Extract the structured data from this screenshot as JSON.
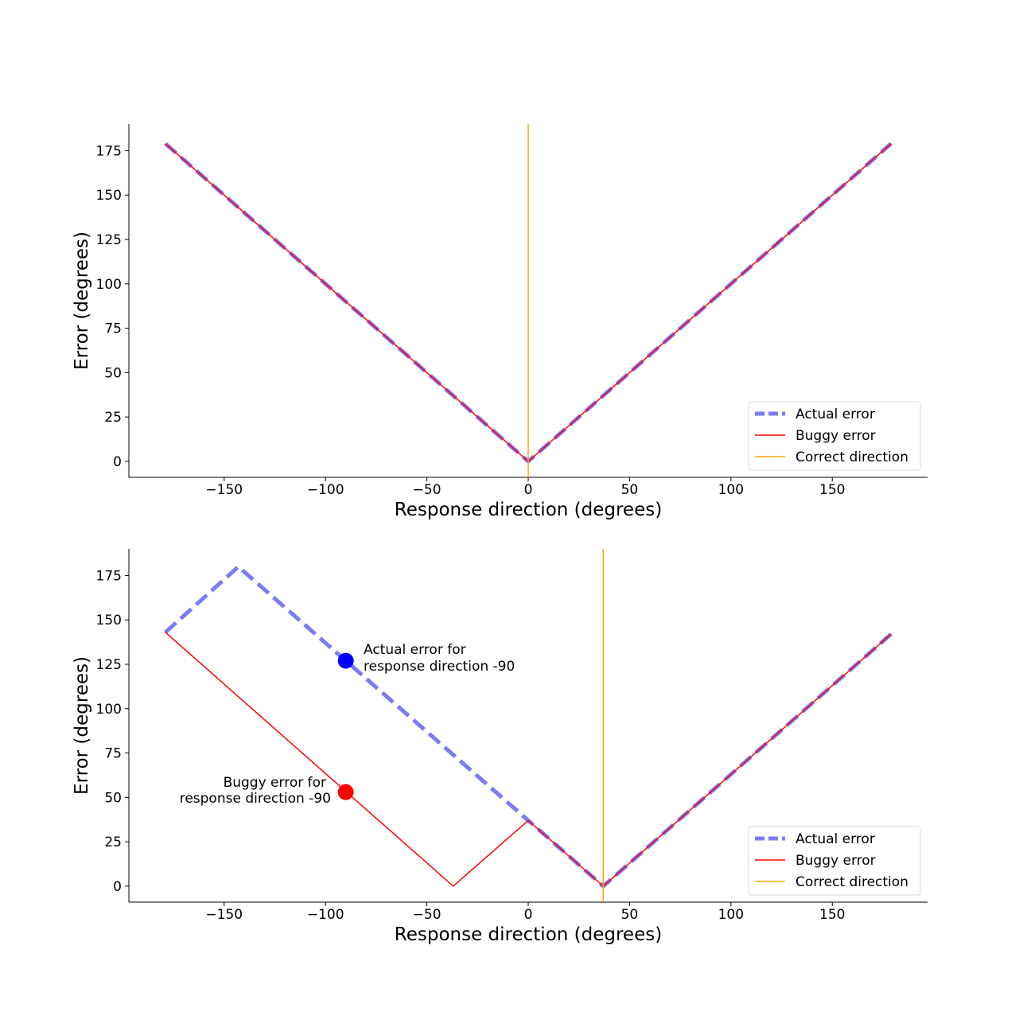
{
  "chart_data": [
    {
      "type": "line",
      "xlabel": "Response direction (degrees)",
      "ylabel": "Error (degrees)",
      "xlim": [
        -197,
        197
      ],
      "ylim": [
        -9,
        190
      ],
      "xticks": [
        -150,
        -100,
        -50,
        0,
        50,
        100,
        150
      ],
      "yticks": [
        0,
        25,
        50,
        75,
        100,
        125,
        150,
        175
      ],
      "legend_position": "lower-right",
      "series": [
        {
          "name": "Actual error",
          "style": "dashed",
          "color": "#7b7bf7",
          "x": [
            -179,
            0,
            179
          ],
          "y": [
            179,
            0,
            179
          ]
        },
        {
          "name": "Buggy error",
          "style": "solid",
          "color": "#ff0000",
          "x": [
            -179,
            0,
            179
          ],
          "y": [
            179,
            0,
            179
          ]
        }
      ],
      "vlines": [
        {
          "name": "Correct direction",
          "x": 0,
          "color": "#ffa500"
        }
      ],
      "points": [],
      "annotations": []
    },
    {
      "type": "line",
      "xlabel": "Response direction (degrees)",
      "ylabel": "Error (degrees)",
      "xlim": [
        -197,
        197
      ],
      "ylim": [
        -9,
        190
      ],
      "xticks": [
        -150,
        -100,
        -50,
        0,
        50,
        100,
        150
      ],
      "yticks": [
        0,
        25,
        50,
        75,
        100,
        125,
        150,
        175
      ],
      "legend_position": "lower-right",
      "series": [
        {
          "name": "Actual error",
          "style": "dashed",
          "color": "#7b7bf7",
          "x": [
            -179,
            -143,
            37,
            179
          ],
          "y": [
            143,
            180,
            0,
            142
          ]
        },
        {
          "name": "Buggy error",
          "style": "solid",
          "color": "#ff0000",
          "x": [
            -179,
            -37,
            0,
            37,
            179
          ],
          "y": [
            143,
            0,
            37,
            0,
            142
          ]
        }
      ],
      "vlines": [
        {
          "name": "Correct direction",
          "x": 37,
          "color": "#ffa500"
        }
      ],
      "points": [
        {
          "x": -90,
          "y": 127,
          "color": "#0000ff"
        },
        {
          "x": -90,
          "y": 53,
          "color": "#ff0000"
        }
      ],
      "annotations": [
        {
          "lines": [
            "Actual error for",
            "response direction -90"
          ],
          "align": "left"
        },
        {
          "lines": [
            "Buggy error for",
            "response direction -90"
          ],
          "align": "right"
        }
      ]
    }
  ]
}
